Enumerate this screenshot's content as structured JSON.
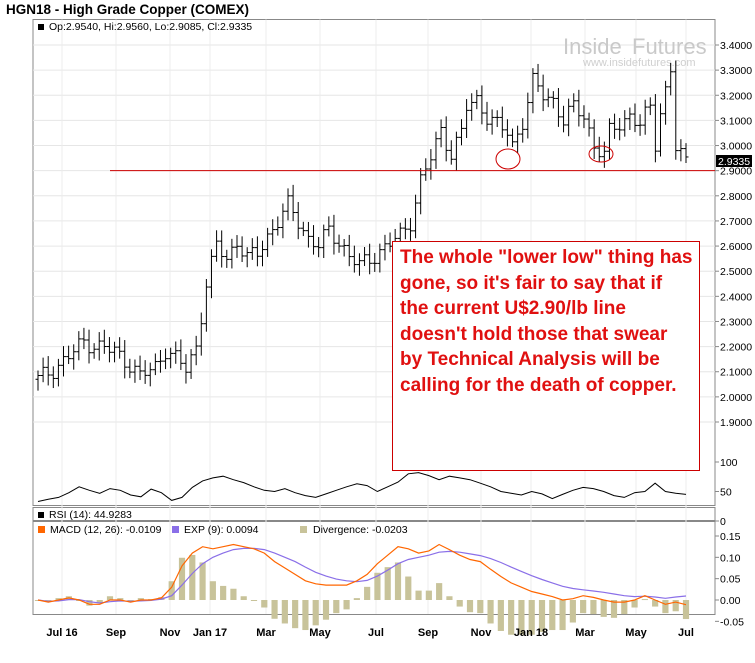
{
  "title": "HGN18 - High Grade Copper (COMEX)",
  "watermark": {
    "brand_left": "Inside",
    "brand_right": "Futures",
    "url": "www.insidefutures.com"
  },
  "colors": {
    "price": "#000000",
    "support": "#cc0000",
    "macd": "#ff6600",
    "exp": "#8a6fe8",
    "divergence": "#c8c39a",
    "annotation": "#e01010"
  },
  "chart_data": [
    {
      "type": "ohlc",
      "legend": "Op:2.9540, Hi:2.9560, Lo:2.9085, Cl:2.9335",
      "last_price_label": "2.9335",
      "yticks": [
        "3.4000",
        "3.3000",
        "3.2000",
        "3.1000",
        "3.0000",
        "2.9000",
        "2.8000",
        "2.7000",
        "2.6000",
        "2.5000",
        "2.4000",
        "2.3000",
        "2.2000",
        "2.1000",
        "2.0000",
        "1.9000"
      ],
      "ylim": [
        1.9,
        3.4
      ],
      "support_level": 2.9,
      "annotation": "The whole \"lower low\" thing has gone, so it's fair to say that if the current U$2.90/lb line doesn't hold those that swear by Technical Analysis will be calling for the death of copper.",
      "close_trend": [
        [
          0,
          2.07
        ],
        [
          3,
          2.11
        ],
        [
          6,
          2.16
        ],
        [
          9,
          2.22
        ],
        [
          12,
          2.2
        ],
        [
          15,
          2.18
        ],
        [
          18,
          2.13
        ],
        [
          20,
          2.08
        ],
        [
          23,
          2.12
        ],
        [
          25,
          2.19
        ],
        [
          27,
          2.15
        ],
        [
          29,
          2.11
        ],
        [
          31,
          2.2
        ],
        [
          33,
          2.45
        ],
        [
          35,
          2.6
        ],
        [
          37,
          2.55
        ],
        [
          39,
          2.62
        ],
        [
          41,
          2.55
        ],
        [
          43,
          2.57
        ],
        [
          45,
          2.64
        ],
        [
          47,
          2.7
        ],
        [
          49,
          2.76
        ],
        [
          51,
          2.7
        ],
        [
          53,
          2.63
        ],
        [
          55,
          2.6
        ],
        [
          57,
          2.66
        ],
        [
          59,
          2.62
        ],
        [
          61,
          2.56
        ],
        [
          63,
          2.52
        ],
        [
          65,
          2.55
        ],
        [
          67,
          2.58
        ],
        [
          69,
          2.61
        ],
        [
          71,
          2.64
        ],
        [
          73,
          2.7
        ],
        [
          75,
          2.86
        ],
        [
          77,
          2.95
        ],
        [
          79,
          3.06
        ],
        [
          81,
          2.97
        ],
        [
          83,
          3.05
        ],
        [
          84,
          3.15
        ],
        [
          86,
          3.18
        ],
        [
          88,
          3.12
        ],
        [
          90,
          3.08
        ],
        [
          92,
          3.05
        ],
        [
          93,
          3.0
        ],
        [
          95,
          3.1
        ],
        [
          97,
          3.25
        ],
        [
          99,
          3.2
        ],
        [
          101,
          3.18
        ],
        [
          103,
          3.1
        ],
        [
          105,
          3.15
        ],
        [
          107,
          3.12
        ],
        [
          109,
          3.0
        ],
        [
          111,
          2.96
        ],
        [
          112,
          3.05
        ],
        [
          114,
          3.09
        ],
        [
          116,
          3.12
        ],
        [
          118,
          3.08
        ],
        [
          120,
          3.15
        ],
        [
          121,
          3.01
        ],
        [
          122,
          3.14
        ],
        [
          124,
          3.3
        ],
        [
          125,
          2.99
        ],
        [
          127,
          2.93
        ]
      ],
      "months": [
        "Jul 16",
        "Sep",
        "Nov",
        "Jan 17",
        "Mar",
        "May",
        "Jul",
        "Sep",
        "Nov",
        "Jan 18",
        "Mar",
        "May",
        "Jul"
      ]
    },
    {
      "type": "line",
      "legend": "RSI (14): 44.9283",
      "yticks": [
        "100",
        "50",
        "0"
      ],
      "ylim": [
        0,
        100
      ],
      "values": [
        33,
        37,
        40,
        48,
        58,
        52,
        47,
        55,
        52,
        44,
        41,
        54,
        48,
        35,
        40,
        57,
        68,
        73,
        76,
        70,
        65,
        58,
        52,
        50,
        55,
        48,
        43,
        40,
        46,
        52,
        58,
        63,
        60,
        50,
        58,
        66,
        80,
        82,
        77,
        70,
        76,
        73,
        70,
        64,
        58,
        50,
        47,
        44,
        50,
        46,
        38,
        45,
        52,
        57,
        55,
        50,
        43,
        40,
        48,
        50,
        64,
        50,
        47,
        45
      ]
    },
    {
      "type": "macd",
      "legend_macd": "MACD (12, 26): -0.0109",
      "legend_exp": "EXP (9): 0.0094",
      "legend_div": "Divergence: -0.0203",
      "yticks": [
        "0.15",
        "0.10",
        "0.05",
        "0.00",
        "-0.05"
      ],
      "ylim": [
        -0.05,
        0.15
      ],
      "macd": [
        0.0,
        -0.005,
        0.0,
        0.005,
        0.0,
        -0.01,
        -0.01,
        0.0,
        0.0,
        -0.005,
        0.0,
        0.0,
        0.005,
        0.03,
        0.08,
        0.11,
        0.125,
        0.12,
        0.125,
        0.13,
        0.125,
        0.12,
        0.11,
        0.09,
        0.075,
        0.06,
        0.045,
        0.038,
        0.035,
        0.035,
        0.035,
        0.045,
        0.06,
        0.085,
        0.105,
        0.125,
        0.12,
        0.11,
        0.115,
        0.13,
        0.118,
        0.105,
        0.095,
        0.09,
        0.072,
        0.055,
        0.04,
        0.03,
        0.02,
        0.014,
        0.008,
        0.0,
        0.003,
        0.01,
        0.006,
        0.0,
        -0.005,
        -0.005,
        0.0,
        0.01,
        0.0,
        -0.01,
        -0.005,
        -0.011
      ],
      "exp": [
        0.0,
        -0.003,
        -0.002,
        0.001,
        0.001,
        -0.004,
        -0.007,
        -0.004,
        -0.002,
        -0.003,
        -0.002,
        -0.001,
        0.002,
        0.01,
        0.035,
        0.062,
        0.085,
        0.1,
        0.11,
        0.118,
        0.121,
        0.121,
        0.118,
        0.11,
        0.1,
        0.09,
        0.077,
        0.065,
        0.056,
        0.049,
        0.045,
        0.043,
        0.046,
        0.056,
        0.07,
        0.085,
        0.095,
        0.1,
        0.105,
        0.112,
        0.114,
        0.112,
        0.108,
        0.104,
        0.097,
        0.088,
        0.077,
        0.067,
        0.057,
        0.048,
        0.04,
        0.032,
        0.027,
        0.024,
        0.021,
        0.018,
        0.014,
        0.01,
        0.008,
        0.009,
        0.007,
        0.004,
        0.007,
        0.0094
      ],
      "divergence": [
        0.0,
        -0.002,
        0.002,
        0.004,
        -0.001,
        -0.006,
        -0.003,
        0.004,
        0.002,
        -0.002,
        0.002,
        0.001,
        0.003,
        0.02,
        0.045,
        0.048,
        0.04,
        0.02,
        0.015,
        0.012,
        0.004,
        -0.001,
        -0.008,
        -0.02,
        -0.025,
        -0.03,
        -0.032,
        -0.027,
        -0.021,
        -0.014,
        -0.01,
        0.002,
        0.014,
        0.029,
        0.035,
        0.04,
        0.025,
        0.01,
        0.01,
        0.018,
        0.004,
        -0.007,
        -0.013,
        -0.014,
        -0.025,
        -0.033,
        -0.037,
        -0.037,
        -0.037,
        -0.034,
        -0.032,
        -0.032,
        -0.024,
        -0.014,
        -0.015,
        -0.018,
        -0.019,
        -0.015,
        -0.008,
        0.001,
        -0.007,
        -0.014,
        -0.012,
        -0.0203
      ]
    }
  ]
}
